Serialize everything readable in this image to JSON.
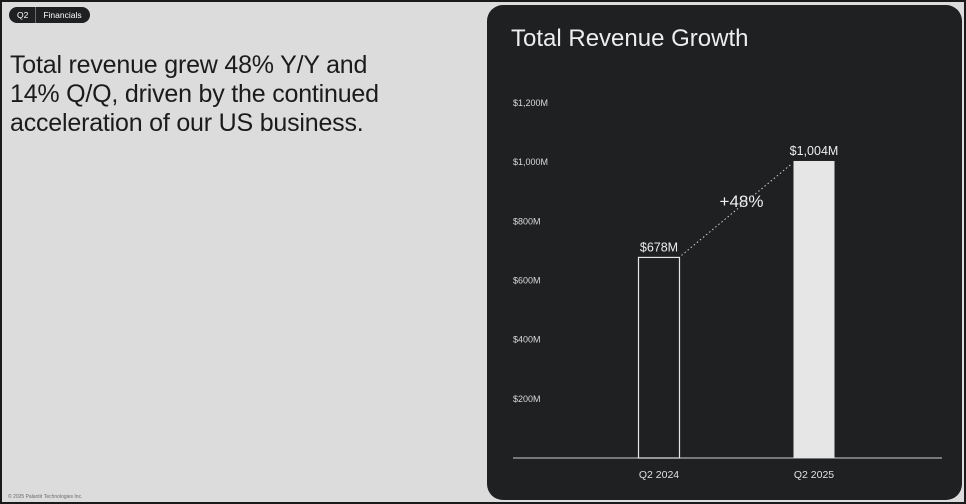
{
  "header": {
    "badge_left": "Q2",
    "badge_right": "Financials"
  },
  "headline": "Total revenue grew 48% Y/Y and 14% Q/Q, driven by the continued acceleration of our US business.",
  "footer": "© 2025 Palantir Technologies Inc.",
  "colors": {
    "background": "#dcdcdc",
    "panel": "#1f2022",
    "bar_fill": "#e6e6e6",
    "text_light": "#ededed"
  },
  "chart_data": {
    "type": "bar",
    "title": "Total Revenue Growth",
    "categories": [
      "Q2 2024",
      "Q2 2025"
    ],
    "values": [
      678,
      1004
    ],
    "data_labels": [
      "$678M",
      "$1,004M"
    ],
    "unit": "$M",
    "ylim": [
      0,
      1200
    ],
    "yticks": [
      200,
      400,
      600,
      800,
      1000,
      1200
    ],
    "ytick_labels": [
      "$200M",
      "$400M",
      "$600M",
      "$800M",
      "$1,000M",
      "$1,200M"
    ],
    "bar_styles": [
      "outline",
      "filled"
    ],
    "growth_annotation": "+48%",
    "grid": false,
    "legend": "none"
  }
}
